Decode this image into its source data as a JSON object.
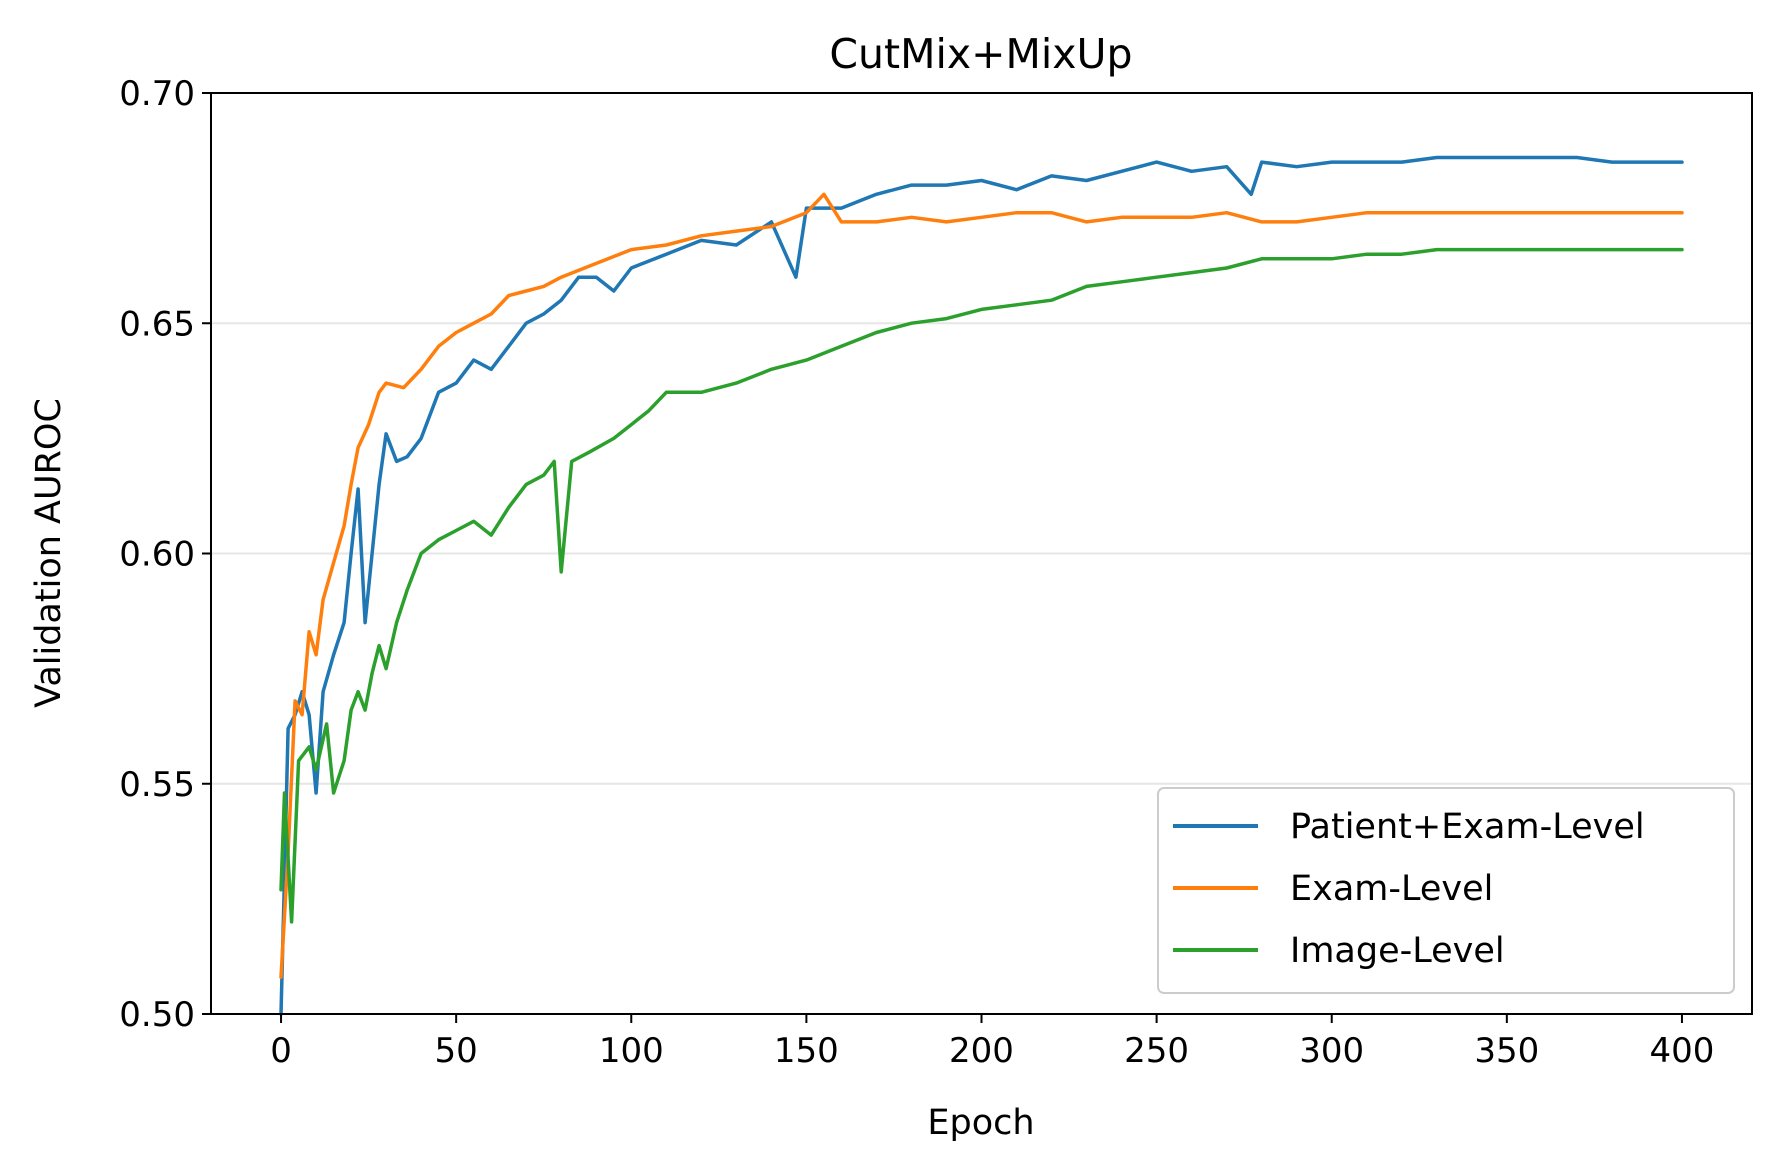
{
  "chart_data": {
    "type": "line",
    "title": "CutMix+MixUp",
    "xlabel": "Epoch",
    "ylabel": "Validation AUROC",
    "xlim": [
      -20,
      420
    ],
    "ylim": [
      0.5,
      0.7
    ],
    "xticks": [
      0,
      50,
      100,
      150,
      200,
      250,
      300,
      350,
      400
    ],
    "yticks": [
      0.5,
      0.55,
      0.6,
      0.65,
      0.7
    ],
    "xtick_labels": [
      "0",
      "50",
      "100",
      "150",
      "200",
      "250",
      "300",
      "350",
      "400"
    ],
    "ytick_labels": [
      "0.50",
      "0.55",
      "0.60",
      "0.65",
      "0.70"
    ],
    "grid": "horizontal",
    "legend_position": "lower-right",
    "series": [
      {
        "name": "Patient+Exam-Level",
        "color": "#1f77b4",
        "points": [
          [
            0,
            0.5
          ],
          [
            1,
            0.53
          ],
          [
            2,
            0.562
          ],
          [
            4,
            0.565
          ],
          [
            6,
            0.57
          ],
          [
            8,
            0.565
          ],
          [
            10,
            0.548
          ],
          [
            12,
            0.57
          ],
          [
            15,
            0.578
          ],
          [
            18,
            0.585
          ],
          [
            20,
            0.6
          ],
          [
            22,
            0.614
          ],
          [
            24,
            0.585
          ],
          [
            26,
            0.6
          ],
          [
            28,
            0.615
          ],
          [
            30,
            0.626
          ],
          [
            33,
            0.62
          ],
          [
            36,
            0.621
          ],
          [
            40,
            0.625
          ],
          [
            45,
            0.635
          ],
          [
            50,
            0.637
          ],
          [
            55,
            0.642
          ],
          [
            60,
            0.64
          ],
          [
            65,
            0.645
          ],
          [
            70,
            0.65
          ],
          [
            75,
            0.652
          ],
          [
            80,
            0.655
          ],
          [
            85,
            0.66
          ],
          [
            90,
            0.66
          ],
          [
            95,
            0.657
          ],
          [
            100,
            0.662
          ],
          [
            110,
            0.665
          ],
          [
            120,
            0.668
          ],
          [
            130,
            0.667
          ],
          [
            140,
            0.672
          ],
          [
            147,
            0.66
          ],
          [
            150,
            0.675
          ],
          [
            160,
            0.675
          ],
          [
            170,
            0.678
          ],
          [
            180,
            0.68
          ],
          [
            190,
            0.68
          ],
          [
            200,
            0.681
          ],
          [
            210,
            0.679
          ],
          [
            220,
            0.682
          ],
          [
            230,
            0.681
          ],
          [
            240,
            0.683
          ],
          [
            250,
            0.685
          ],
          [
            260,
            0.683
          ],
          [
            270,
            0.684
          ],
          [
            277,
            0.678
          ],
          [
            280,
            0.685
          ],
          [
            290,
            0.684
          ],
          [
            300,
            0.685
          ],
          [
            310,
            0.685
          ],
          [
            320,
            0.685
          ],
          [
            330,
            0.686
          ],
          [
            340,
            0.686
          ],
          [
            350,
            0.686
          ],
          [
            360,
            0.686
          ],
          [
            370,
            0.686
          ],
          [
            380,
            0.685
          ],
          [
            390,
            0.685
          ],
          [
            400,
            0.685
          ]
        ]
      },
      {
        "name": "Exam-Level",
        "color": "#ff7f0e",
        "points": [
          [
            0,
            0.508
          ],
          [
            2,
            0.535
          ],
          [
            4,
            0.568
          ],
          [
            6,
            0.565
          ],
          [
            8,
            0.583
          ],
          [
            10,
            0.578
          ],
          [
            12,
            0.59
          ],
          [
            15,
            0.598
          ],
          [
            18,
            0.606
          ],
          [
            20,
            0.615
          ],
          [
            22,
            0.623
          ],
          [
            25,
            0.628
          ],
          [
            28,
            0.635
          ],
          [
            30,
            0.637
          ],
          [
            35,
            0.636
          ],
          [
            40,
            0.64
          ],
          [
            45,
            0.645
          ],
          [
            50,
            0.648
          ],
          [
            55,
            0.65
          ],
          [
            60,
            0.652
          ],
          [
            65,
            0.656
          ],
          [
            70,
            0.657
          ],
          [
            75,
            0.658
          ],
          [
            80,
            0.66
          ],
          [
            90,
            0.663
          ],
          [
            100,
            0.666
          ],
          [
            110,
            0.667
          ],
          [
            120,
            0.669
          ],
          [
            130,
            0.67
          ],
          [
            140,
            0.671
          ],
          [
            150,
            0.674
          ],
          [
            155,
            0.678
          ],
          [
            160,
            0.672
          ],
          [
            170,
            0.672
          ],
          [
            180,
            0.673
          ],
          [
            190,
            0.672
          ],
          [
            200,
            0.673
          ],
          [
            210,
            0.674
          ],
          [
            220,
            0.674
          ],
          [
            230,
            0.672
          ],
          [
            240,
            0.673
          ],
          [
            250,
            0.673
          ],
          [
            260,
            0.673
          ],
          [
            270,
            0.674
          ],
          [
            280,
            0.672
          ],
          [
            290,
            0.672
          ],
          [
            300,
            0.673
          ],
          [
            310,
            0.674
          ],
          [
            320,
            0.674
          ],
          [
            330,
            0.674
          ],
          [
            340,
            0.674
          ],
          [
            350,
            0.674
          ],
          [
            360,
            0.674
          ],
          [
            370,
            0.674
          ],
          [
            380,
            0.674
          ],
          [
            390,
            0.674
          ],
          [
            400,
            0.674
          ]
        ]
      },
      {
        "name": "Image-Level",
        "color": "#2ca02c",
        "points": [
          [
            0,
            0.527
          ],
          [
            1,
            0.548
          ],
          [
            3,
            0.52
          ],
          [
            5,
            0.555
          ],
          [
            8,
            0.558
          ],
          [
            10,
            0.553
          ],
          [
            13,
            0.563
          ],
          [
            15,
            0.548
          ],
          [
            18,
            0.555
          ],
          [
            20,
            0.566
          ],
          [
            22,
            0.57
          ],
          [
            24,
            0.566
          ],
          [
            26,
            0.574
          ],
          [
            28,
            0.58
          ],
          [
            30,
            0.575
          ],
          [
            33,
            0.585
          ],
          [
            36,
            0.592
          ],
          [
            40,
            0.6
          ],
          [
            45,
            0.603
          ],
          [
            50,
            0.605
          ],
          [
            55,
            0.607
          ],
          [
            60,
            0.604
          ],
          [
            65,
            0.61
          ],
          [
            70,
            0.615
          ],
          [
            75,
            0.617
          ],
          [
            78,
            0.62
          ],
          [
            80,
            0.596
          ],
          [
            83,
            0.62
          ],
          [
            88,
            0.622
          ],
          [
            95,
            0.625
          ],
          [
            100,
            0.628
          ],
          [
            105,
            0.631
          ],
          [
            110,
            0.635
          ],
          [
            120,
            0.635
          ],
          [
            130,
            0.637
          ],
          [
            140,
            0.64
          ],
          [
            150,
            0.642
          ],
          [
            160,
            0.645
          ],
          [
            170,
            0.648
          ],
          [
            180,
            0.65
          ],
          [
            190,
            0.651
          ],
          [
            200,
            0.653
          ],
          [
            210,
            0.654
          ],
          [
            220,
            0.655
          ],
          [
            230,
            0.658
          ],
          [
            240,
            0.659
          ],
          [
            250,
            0.66
          ],
          [
            260,
            0.661
          ],
          [
            270,
            0.662
          ],
          [
            280,
            0.664
          ],
          [
            290,
            0.664
          ],
          [
            300,
            0.664
          ],
          [
            310,
            0.665
          ],
          [
            320,
            0.665
          ],
          [
            330,
            0.666
          ],
          [
            340,
            0.666
          ],
          [
            350,
            0.666
          ],
          [
            360,
            0.666
          ],
          [
            370,
            0.666
          ],
          [
            380,
            0.666
          ],
          [
            390,
            0.666
          ],
          [
            400,
            0.666
          ]
        ]
      }
    ]
  }
}
